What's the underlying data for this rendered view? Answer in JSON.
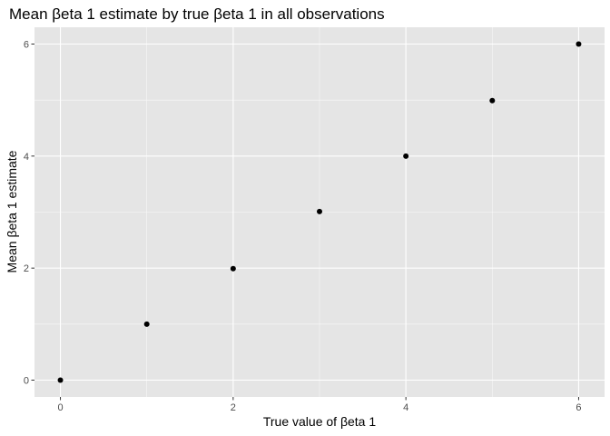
{
  "chart_data": {
    "type": "scatter",
    "title": "Mean βeta 1 estimate by true βeta 1 in all observations",
    "xlabel": "True value of βeta 1",
    "ylabel": "Mean βeta 1 estimate",
    "xlim": [
      -0.3,
      6.3
    ],
    "ylim": [
      -0.3,
      6.3
    ],
    "x_ticks": [
      0,
      2,
      4,
      6
    ],
    "y_ticks": [
      0,
      2,
      4,
      6
    ],
    "x_tick_labels": [
      "0",
      "2",
      "4",
      "6"
    ],
    "y_tick_labels": [
      "0",
      "2",
      "4",
      "6"
    ],
    "grid": true,
    "legend": "none",
    "colors": {
      "panel": "#e5e5e5",
      "grid_major": "#ffffff",
      "point": "#000000"
    },
    "x": [
      0,
      1,
      2,
      3,
      4,
      5,
      6
    ],
    "y": [
      0.0,
      1.0,
      1.99,
      3.01,
      4.0,
      4.99,
      6.0
    ]
  }
}
